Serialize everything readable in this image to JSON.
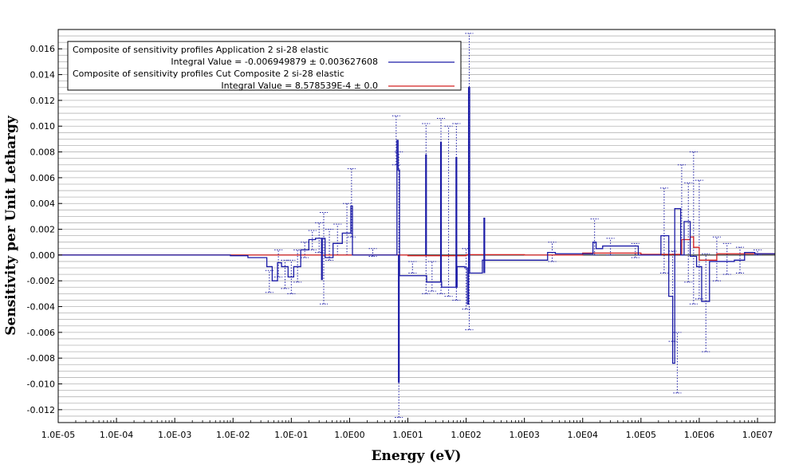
{
  "chart_data": {
    "type": "line",
    "title": "",
    "xlabel": "Energy (eV)",
    "ylabel": "Sensitivity per Unit Lethargy",
    "x_scale": "log",
    "xlim": [
      1e-05,
      20000000.0
    ],
    "ylim": [
      -0.013,
      0.0175
    ],
    "grid": true,
    "legend_position": "top-left",
    "x_ticks": [
      {
        "value": 1e-05,
        "label": "1.0E-05"
      },
      {
        "value": 0.0001,
        "label": "1.0E-04"
      },
      {
        "value": 0.001,
        "label": "1.0E-03"
      },
      {
        "value": 0.01,
        "label": "1.0E-02"
      },
      {
        "value": 0.1,
        "label": "1.0E-01"
      },
      {
        "value": 1,
        "label": "1.0E00"
      },
      {
        "value": 10,
        "label": "1.0E01"
      },
      {
        "value": 100,
        "label": "1.0E02"
      },
      {
        "value": 1000,
        "label": "1.0E03"
      },
      {
        "value": 10000,
        "label": "1.0E04"
      },
      {
        "value": 100000,
        "label": "1.0E05"
      },
      {
        "value": 1000000,
        "label": "1.0E06"
      },
      {
        "value": 10000000,
        "label": "1.0E07"
      }
    ],
    "y_ticks": [
      {
        "value": -0.012,
        "label": "-0.012"
      },
      {
        "value": -0.01,
        "label": "-0.010"
      },
      {
        "value": -0.008,
        "label": "-0.008"
      },
      {
        "value": -0.006,
        "label": "-0.006"
      },
      {
        "value": -0.004,
        "label": "-0.004"
      },
      {
        "value": -0.002,
        "label": "-0.002"
      },
      {
        "value": 0.0,
        "label": "0.000"
      },
      {
        "value": 0.002,
        "label": "0.002"
      },
      {
        "value": 0.004,
        "label": "0.004"
      },
      {
        "value": 0.006,
        "label": "0.006"
      },
      {
        "value": 0.008,
        "label": "0.008"
      },
      {
        "value": 0.01,
        "label": "0.010"
      },
      {
        "value": 0.012,
        "label": "0.012"
      },
      {
        "value": 0.014,
        "label": "0.014"
      },
      {
        "value": 0.016,
        "label": "0.016"
      }
    ],
    "legend": [
      {
        "line1": "Composite of sensitivity profiles Application 2 si-28 elastic",
        "line2": "Integral Value = -0.006949879 ± 0.003627608",
        "color": "#1a1aa6"
      },
      {
        "line1": "Composite of sensitivity profiles Cut Composite 2 si-28 elastic",
        "line2": "Integral Value = 8.578539E-4 ± 0.0",
        "color": "#d42020"
      }
    ],
    "series": [
      {
        "name": "Composite of sensitivity profiles Application 2 si-28 elastic",
        "color": "#1a1aa6",
        "step_x": [
          1e-05,
          0.004,
          0.009,
          0.018,
          0.028,
          0.038,
          0.047,
          0.058,
          0.068,
          0.088,
          0.11,
          0.145,
          0.2,
          0.26,
          0.33,
          0.34,
          0.38,
          0.52,
          0.75,
          1.05,
          1.12,
          6.0,
          6.5,
          6.8,
          7.2,
          20,
          21,
          35,
          38,
          65,
          70,
          95,
          105,
          110,
          115,
          125,
          190,
          205,
          2500,
          3400,
          4000,
          15000,
          17000,
          22000,
          32000,
          90000,
          220000,
          300000,
          350000,
          380000,
          480000,
          550000,
          700000,
          900000,
          1100000,
          1500000,
          1800000,
          2500000,
          4000000,
          6000000,
          9000000,
          20000000
        ],
        "step_y": [
          0.0,
          0.0,
          -5e-05,
          -0.0002,
          -0.0002,
          -0.0009,
          -0.002,
          -0.0006,
          -0.0009,
          -0.0017,
          -0.0009,
          0.0004,
          0.0012,
          0.0013,
          -0.0019,
          0.0013,
          -0.0002,
          0.0009,
          0.0017,
          0.0038,
          0.0,
          0.0,
          0.0089,
          0.0066,
          -0.0016,
          -0.0016,
          -0.0021,
          -0.0021,
          -0.0025,
          -0.0025,
          -0.0009,
          -0.001,
          -0.0038,
          0.013,
          -0.0014,
          -0.0014,
          -0.0004,
          -0.0004,
          0.0002,
          0.0001,
          0.0001,
          0.001,
          0.0005,
          0.0007,
          0.0007,
          0.0,
          0.0015,
          -0.0032,
          -0.0084,
          0.0036,
          0.0,
          0.0026,
          -0.0001,
          -0.0009,
          -0.0036,
          -0.0005,
          -0.0005,
          -0.0005,
          -0.0004,
          0.0002,
          0.0001,
          0.0001
        ],
        "spikes": [
          {
            "x": 7.0,
            "y0": 0.0,
            "y1": -0.0099
          },
          {
            "x": 20.5,
            "y0": 0.0,
            "y1": 0.0078
          },
          {
            "x": 37.0,
            "y0": -0.0021,
            "y1": 0.0088
          },
          {
            "x": 68.0,
            "y0": -0.0025,
            "y1": 0.0076
          },
          {
            "x": 205.0,
            "y0": -0.0014,
            "y1": 0.0029
          }
        ],
        "error_bars": [
          {
            "x": 0.042,
            "lo": -0.0029,
            "hi": -0.0012
          },
          {
            "x": 0.06,
            "lo": -0.0017,
            "hi": 0.0004
          },
          {
            "x": 0.078,
            "lo": -0.0026,
            "hi": -0.0004
          },
          {
            "x": 0.1,
            "lo": -0.003,
            "hi": -0.0004
          },
          {
            "x": 0.128,
            "lo": -0.0021,
            "hi": 0.0004
          },
          {
            "x": 0.17,
            "lo": -0.0002,
            "hi": 0.001
          },
          {
            "x": 0.23,
            "lo": 0.0004,
            "hi": 0.0019
          },
          {
            "x": 0.3,
            "lo": 0.0002,
            "hi": 0.0025
          },
          {
            "x": 0.36,
            "lo": -0.0038,
            "hi": 0.0033
          },
          {
            "x": 0.45,
            "lo": -0.0004,
            "hi": 0.002
          },
          {
            "x": 0.62,
            "lo": 0.0,
            "hi": 0.0024
          },
          {
            "x": 0.9,
            "lo": 0.0,
            "hi": 0.004
          },
          {
            "x": 1.08,
            "lo": 0.0014,
            "hi": 0.0067
          },
          {
            "x": 2.5,
            "lo": -0.0001,
            "hi": 0.0005
          },
          {
            "x": 6.3,
            "lo": 0.007,
            "hi": 0.0108
          },
          {
            "x": 7.0,
            "lo": -0.0126,
            "hi": 0.008
          },
          {
            "x": 12,
            "lo": -0.0014,
            "hi": -0.0005
          },
          {
            "x": 20.5,
            "lo": -0.003,
            "hi": 0.0102
          },
          {
            "x": 26,
            "lo": -0.0028,
            "hi": -0.0005
          },
          {
            "x": 37,
            "lo": -0.003,
            "hi": 0.0106
          },
          {
            "x": 50,
            "lo": -0.0032,
            "hi": 0.01
          },
          {
            "x": 68,
            "lo": -0.0035,
            "hi": 0.0102
          },
          {
            "x": 100,
            "lo": -0.0042,
            "hi": 0.0005
          },
          {
            "x": 113,
            "lo": -0.0058,
            "hi": 0.0172
          },
          {
            "x": 3000,
            "lo": -0.0005,
            "hi": 0.001
          },
          {
            "x": 16000,
            "lo": 0.0,
            "hi": 0.0028
          },
          {
            "x": 30000,
            "lo": 0.0,
            "hi": 0.0013
          },
          {
            "x": 80000,
            "lo": -0.0002,
            "hi": 0.0009
          },
          {
            "x": 250000,
            "lo": -0.0014,
            "hi": 0.0052
          },
          {
            "x": 350000,
            "lo": -0.0067,
            "hi": 0.0003
          },
          {
            "x": 420000,
            "lo": -0.0107,
            "hi": -0.006
          },
          {
            "x": 500000,
            "lo": 0.0,
            "hi": 0.007
          },
          {
            "x": 650000,
            "lo": -0.0021,
            "hi": 0.0056
          },
          {
            "x": 800000,
            "lo": -0.0038,
            "hi": 0.008
          },
          {
            "x": 1000000,
            "lo": -0.0034,
            "hi": 0.0058
          },
          {
            "x": 1300000,
            "lo": -0.0075,
            "hi": 0.0001
          },
          {
            "x": 2000000,
            "lo": -0.002,
            "hi": 0.0014
          },
          {
            "x": 3000000,
            "lo": -0.0015,
            "hi": 0.0009
          },
          {
            "x": 5000000,
            "lo": -0.0014,
            "hi": 0.0006
          },
          {
            "x": 10000000,
            "lo": 0.0,
            "hi": 0.0004
          }
        ]
      },
      {
        "name": "Composite of sensitivity profiles Cut Composite 2 si-28 elastic",
        "color": "#d42020",
        "step_x": [
          1e-05,
          1.0,
          10,
          100,
          1000,
          10000,
          100000,
          500000,
          700000,
          800000,
          1000000,
          2000000,
          20000000
        ],
        "step_y": [
          0.0,
          0.0,
          -5e-05,
          3e-05,
          0.0,
          0.00015,
          5e-05,
          0.0012,
          0.0014,
          0.0006,
          -0.0004,
          0.0001,
          0.0001
        ]
      }
    ]
  }
}
